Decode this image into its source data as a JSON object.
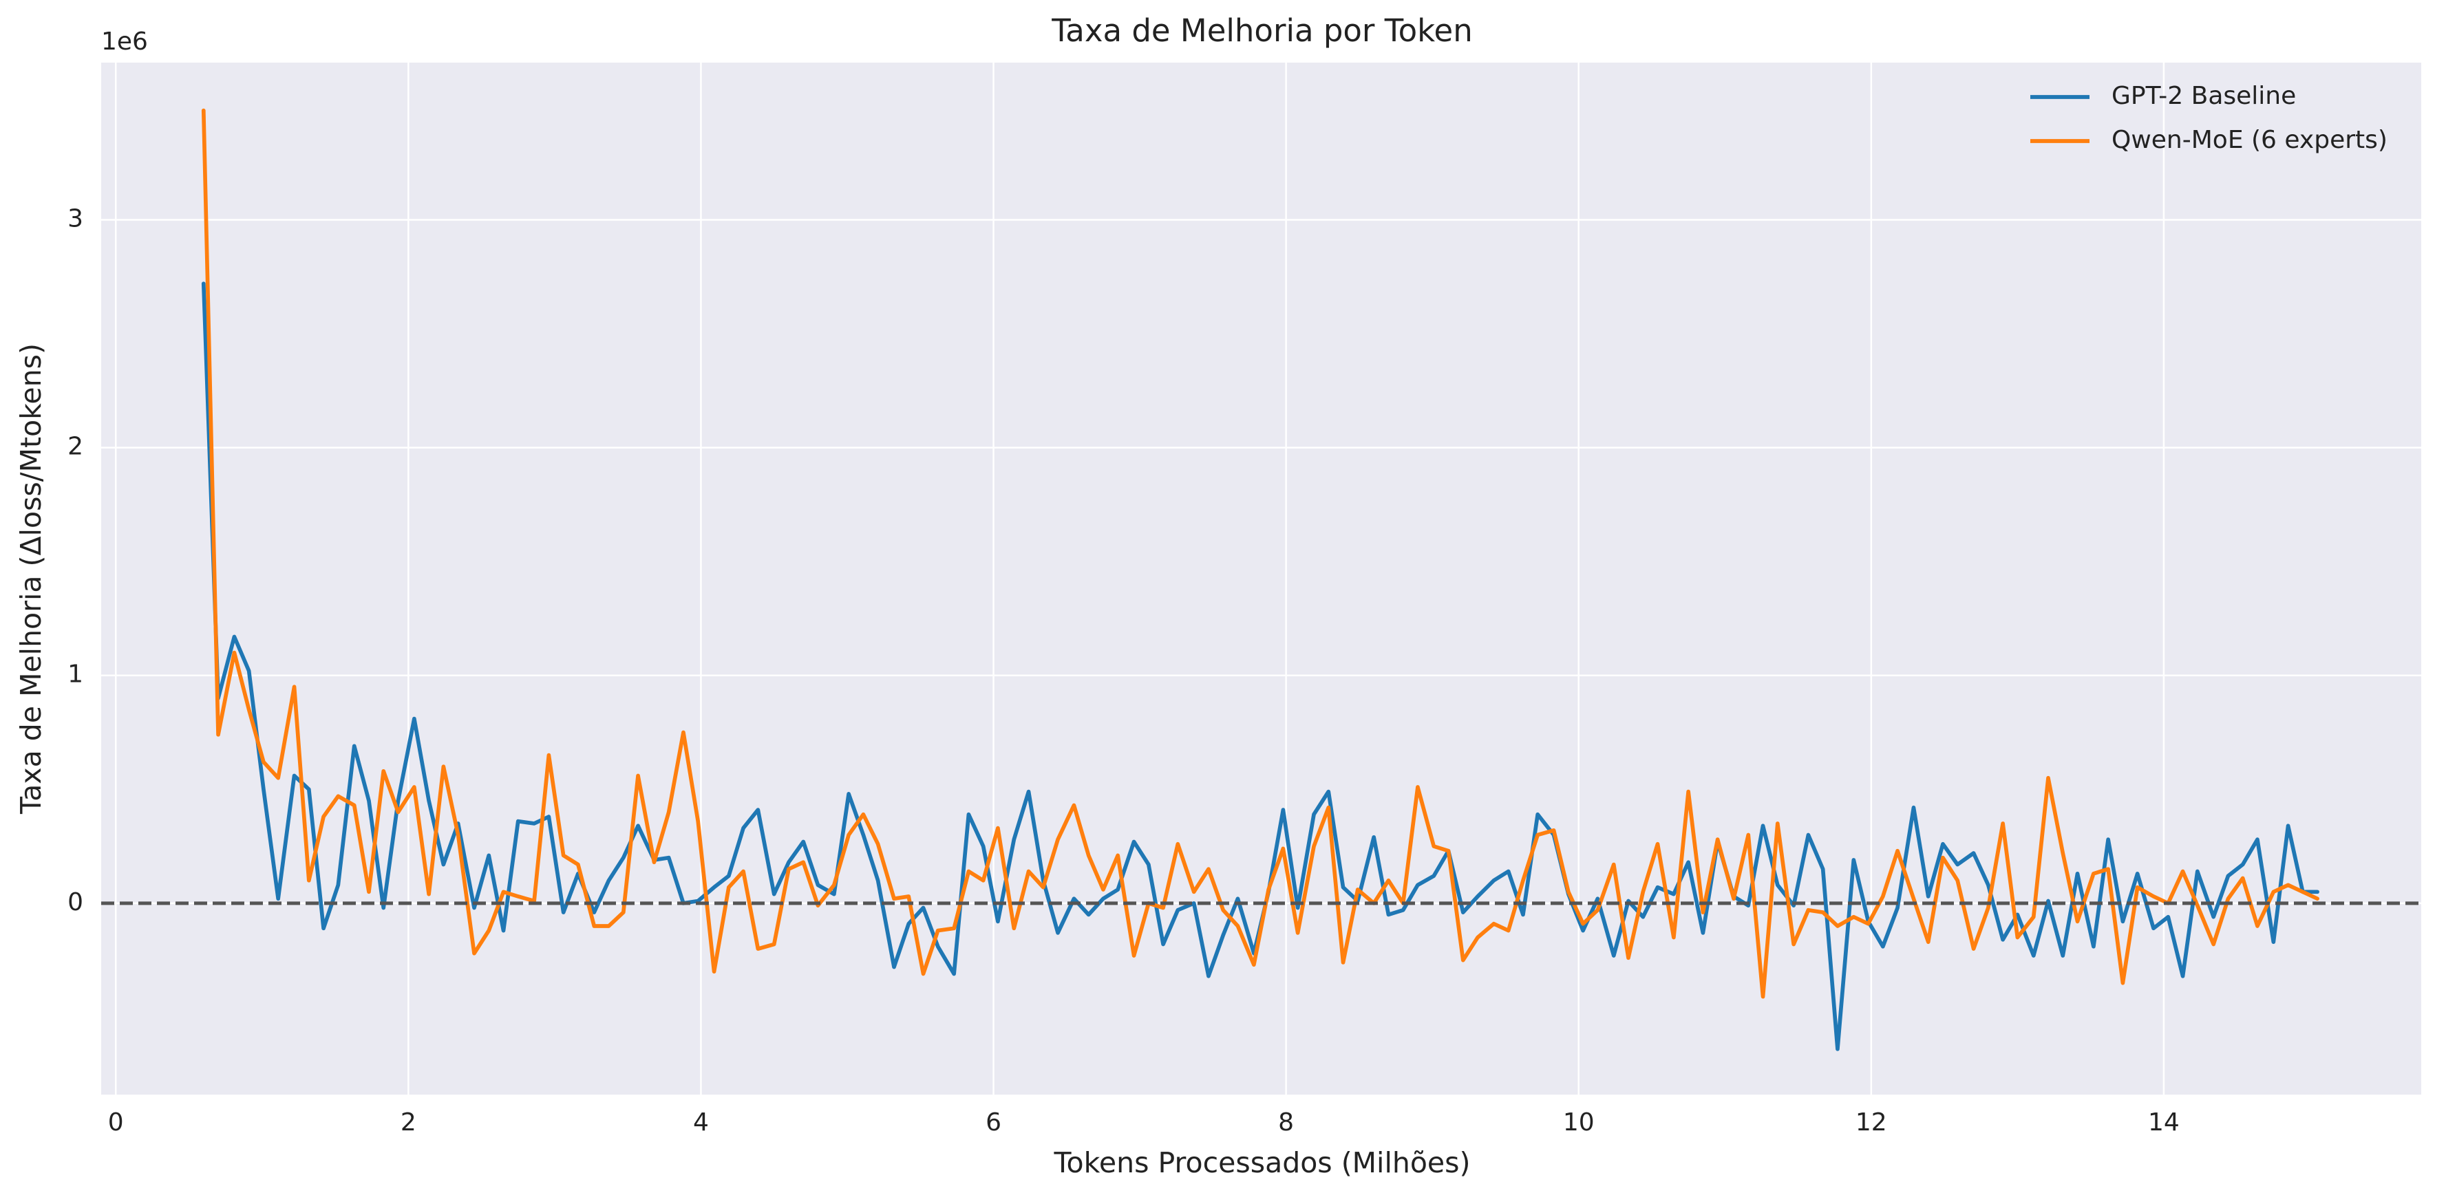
{
  "chart_data": {
    "type": "line",
    "title": "Taxa de Melhoria por Token",
    "xlabel": "Tokens Processados (Milhões)",
    "ylabel": "Taxa de Melhoria (Δloss/Mtokens)",
    "y_offset_label": "1e6",
    "xlim": [
      -0.1,
      15.76
    ],
    "ylim": [
      -0.84,
      3.69
    ],
    "xticks": [
      0,
      2,
      4,
      6,
      8,
      10,
      12,
      14
    ],
    "yticks": [
      0,
      1,
      2,
      3
    ],
    "grid": true,
    "legend": "upper right",
    "hline": {
      "y": 0,
      "color": "#555555"
    },
    "x": [
      0.6,
      0.7,
      0.81,
      0.91,
      1.01,
      1.11,
      1.22,
      1.32,
      1.42,
      1.52,
      1.63,
      1.73,
      1.83,
      1.93,
      2.04,
      2.14,
      2.24,
      2.34,
      2.45,
      2.55,
      2.65,
      2.75,
      2.86,
      2.96,
      3.06,
      3.16,
      3.27,
      3.37,
      3.47,
      3.57,
      3.68,
      3.78,
      3.88,
      3.98,
      4.09,
      4.19,
      4.29,
      4.39,
      4.5,
      4.6,
      4.7,
      4.8,
      4.91,
      5.01,
      5.11,
      5.21,
      5.32,
      5.42,
      5.52,
      5.62,
      5.73,
      5.83,
      5.93,
      6.03,
      6.14,
      6.24,
      6.34,
      6.44,
      6.55,
      6.65,
      6.75,
      6.85,
      6.96,
      7.06,
      7.16,
      7.26,
      7.37,
      7.47,
      7.57,
      7.67,
      7.78,
      7.88,
      7.98,
      8.08,
      8.19,
      8.29,
      8.39,
      8.49,
      8.6,
      8.7,
      8.8,
      8.9,
      9.01,
      9.11,
      9.21,
      9.31,
      9.42,
      9.52,
      9.62,
      9.72,
      9.83,
      9.93,
      10.03,
      10.13,
      10.24,
      10.34,
      10.44,
      10.54,
      10.65,
      10.75,
      10.85,
      10.95,
      11.06,
      11.16,
      11.26,
      11.36,
      11.47,
      11.57,
      11.67,
      11.77,
      11.88,
      11.98,
      12.08,
      12.18,
      12.29,
      12.39,
      12.49,
      12.59,
      12.7,
      12.8,
      12.9,
      13.0,
      13.11,
      13.21,
      13.31,
      13.41,
      13.52,
      13.62,
      13.72,
      13.82,
      13.93,
      14.03,
      14.13,
      14.23,
      14.34,
      14.44,
      14.54,
      14.64,
      14.75,
      14.85,
      14.95,
      15.05
    ],
    "series": [
      {
        "name": "GPT-2 Baseline",
        "color": "#1f77b4",
        "values": [
          2.72,
          0.9,
          1.17,
          1.02,
          0.5,
          0.02,
          0.56,
          0.5,
          -0.11,
          0.08,
          0.69,
          0.45,
          -0.02,
          0.45,
          0.81,
          0.45,
          0.17,
          0.35,
          -0.02,
          0.21,
          -0.12,
          0.36,
          0.35,
          0.38,
          -0.04,
          0.13,
          -0.04,
          0.1,
          0.2,
          0.34,
          0.19,
          0.2,
          0.0,
          0.01,
          0.07,
          0.12,
          0.33,
          0.41,
          0.04,
          0.18,
          0.27,
          0.08,
          0.04,
          0.48,
          0.3,
          0.1,
          -0.28,
          -0.09,
          -0.02,
          -0.19,
          -0.31,
          0.39,
          0.25,
          -0.08,
          0.28,
          0.49,
          0.1,
          -0.13,
          0.02,
          -0.05,
          0.02,
          0.06,
          0.27,
          0.17,
          -0.18,
          -0.03,
          0.0,
          -0.32,
          -0.14,
          0.02,
          -0.22,
          0.05,
          0.41,
          -0.02,
          0.39,
          0.49,
          0.07,
          0.01,
          0.29,
          -0.05,
          -0.03,
          0.08,
          0.12,
          0.23,
          -0.04,
          0.03,
          0.1,
          0.14,
          -0.05,
          0.39,
          0.3,
          0.04,
          -0.12,
          0.02,
          -0.23,
          0.01,
          -0.06,
          0.07,
          0.04,
          0.18,
          -0.13,
          0.27,
          0.03,
          -0.01,
          0.34,
          0.08,
          -0.01,
          0.3,
          0.15,
          -0.64,
          0.19,
          -0.08,
          -0.19,
          -0.02,
          0.42,
          0.03,
          0.26,
          0.17,
          0.22,
          0.08,
          -0.16,
          -0.05,
          -0.23,
          0.01,
          -0.23,
          0.13,
          -0.19,
          0.28,
          -0.08,
          0.13,
          -0.11,
          -0.06,
          -0.32,
          0.14,
          -0.06,
          0.12,
          0.17,
          0.28,
          -0.17,
          0.34,
          0.05,
          0.05
        ]
      },
      {
        "name": "Qwen-MoE (6 experts)",
        "color": "#ff7f0e",
        "values": [
          3.48,
          0.74,
          1.1,
          0.85,
          0.62,
          0.55,
          0.95,
          0.1,
          0.38,
          0.47,
          0.43,
          0.05,
          0.58,
          0.4,
          0.51,
          0.04,
          0.6,
          0.3,
          -0.22,
          -0.12,
          0.05,
          0.03,
          0.01,
          0.65,
          0.21,
          0.17,
          -0.1,
          -0.1,
          -0.04,
          0.56,
          0.18,
          0.4,
          0.75,
          0.36,
          -0.3,
          0.07,
          0.14,
          -0.2,
          -0.18,
          0.15,
          0.18,
          -0.01,
          0.08,
          0.3,
          0.39,
          0.26,
          0.02,
          0.03,
          -0.31,
          -0.12,
          -0.11,
          0.14,
          0.1,
          0.33,
          -0.11,
          0.14,
          0.07,
          0.28,
          0.43,
          0.21,
          0.06,
          0.21,
          -0.23,
          0.0,
          -0.02,
          0.26,
          0.05,
          0.15,
          -0.03,
          -0.1,
          -0.27,
          0.06,
          0.24,
          -0.13,
          0.25,
          0.42,
          -0.26,
          0.06,
          0.0,
          0.1,
          0.0,
          0.51,
          0.25,
          0.23,
          -0.25,
          -0.15,
          -0.09,
          -0.12,
          0.1,
          0.3,
          0.32,
          0.05,
          -0.09,
          -0.03,
          0.17,
          -0.24,
          0.05,
          0.26,
          -0.15,
          0.49,
          -0.04,
          0.28,
          0.02,
          0.3,
          -0.41,
          0.35,
          -0.18,
          -0.03,
          -0.04,
          -0.1,
          -0.06,
          -0.09,
          0.03,
          0.23,
          0.02,
          -0.17,
          0.2,
          0.1,
          -0.2,
          -0.02,
          0.35,
          -0.15,
          -0.06,
          0.55,
          0.22,
          -0.08,
          0.13,
          0.15,
          -0.35,
          0.07,
          0.03,
          0.0,
          0.14,
          -0.01,
          -0.18,
          0.02,
          0.11,
          -0.1,
          0.05,
          0.08,
          0.05,
          0.02
        ]
      }
    ]
  }
}
